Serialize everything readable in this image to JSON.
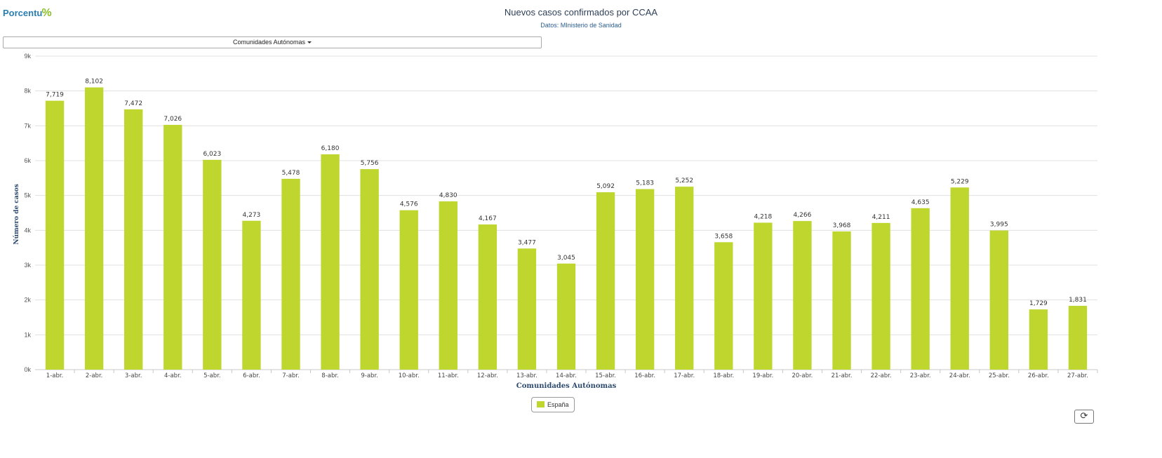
{
  "header": {
    "logo_text": "Porcentu",
    "logo_mark": "%",
    "title": "Nuevos casos confirmados por CCAA",
    "subtitle": "Datos: MInisterio de Sanidad",
    "dropdown_label": "Comunidades Autónomas"
  },
  "legend": {
    "label": "España"
  },
  "refresh": {
    "icon": "refresh-icon",
    "glyph": "⟳"
  },
  "colors": {
    "bar": "#bfd62e",
    "grid": "#e0e0e0",
    "axis_title": "#2d4a6e"
  },
  "chart_data": {
    "type": "bar",
    "xlabel": "Comunidades Autónomas",
    "ylabel": "Número de casos",
    "ylim": [
      0,
      9000
    ],
    "yticks": [
      "0k",
      "1k",
      "2k",
      "3k",
      "4k",
      "5k",
      "6k",
      "7k",
      "8k",
      "9k"
    ],
    "grid": true,
    "legend_position": "bottom-center",
    "categories": [
      "1-abr.",
      "2-abr.",
      "3-abr.",
      "4-abr.",
      "5-abr.",
      "6-abr.",
      "7-abr.",
      "8-abr.",
      "9-abr.",
      "10-abr.",
      "11-abr.",
      "12-abr.",
      "13-abr.",
      "14-abr.",
      "15-abr.",
      "16-abr.",
      "17-abr.",
      "18-abr.",
      "19-abr.",
      "20-abr.",
      "21-abr.",
      "22-abr.",
      "23-abr.",
      "24-abr.",
      "25-abr.",
      "26-abr.",
      "27-abr."
    ],
    "series": [
      {
        "name": "España",
        "values": [
          7719,
          8102,
          7472,
          7026,
          6023,
          4273,
          5478,
          6180,
          5756,
          4576,
          4830,
          4167,
          3477,
          3045,
          5092,
          5183,
          5252,
          3658,
          4218,
          4266,
          3968,
          4211,
          4635,
          5229,
          3995,
          1729,
          1831
        ],
        "labels": [
          "7,719",
          "8,102",
          "7,472",
          "7,026",
          "6,023",
          "4,273",
          "5,478",
          "6,180",
          "5,756",
          "4,576",
          "4,830",
          "4,167",
          "3,477",
          "3,045",
          "5,092",
          "5,183",
          "5,252",
          "3,658",
          "4,218",
          "4,266",
          "3,968",
          "4,211",
          "4,635",
          "5,229",
          "3,995",
          "1,729",
          "1,831"
        ]
      }
    ]
  }
}
